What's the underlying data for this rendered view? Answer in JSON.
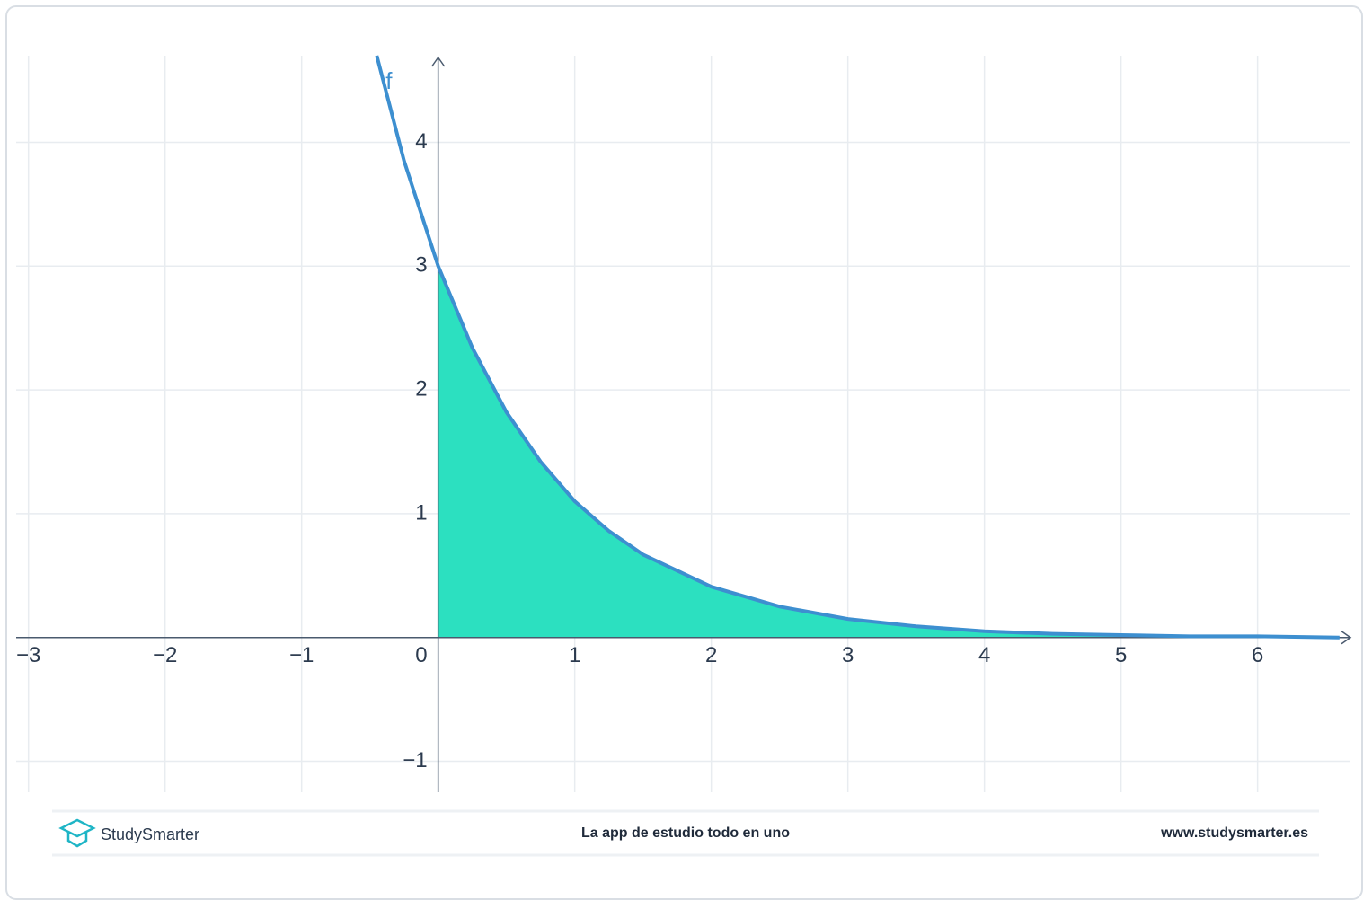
{
  "chart_data": {
    "type": "line",
    "x": [
      -0.45,
      -0.25,
      0,
      0.25,
      0.5,
      0.75,
      1,
      1.25,
      1.5,
      2,
      2.5,
      3,
      3.5,
      4,
      4.5,
      5,
      5.5,
      6,
      6.6
    ],
    "series": [
      {
        "name": "f",
        "color": "#3d8fd0",
        "values": [
          4.7,
          3.85,
          3,
          2.34,
          1.82,
          1.42,
          1.1,
          0.86,
          0.67,
          0.41,
          0.25,
          0.15,
          0.09,
          0.05,
          0.03,
          0.02,
          0.01,
          0.01,
          0
        ]
      },
      {
        "type": "area",
        "color": "#2ce0c0",
        "values": [
          null,
          null,
          3,
          2.34,
          1.82,
          1.42,
          1.1,
          0.86,
          0.67,
          0.41,
          0.25,
          0.15,
          0.09,
          0.05,
          0.03,
          0.02,
          0.01,
          0.01,
          0
        ]
      }
    ],
    "xlim": [
      -3.09,
      6.68
    ],
    "ylim": [
      -1.25,
      4.7
    ],
    "xticks": [
      {
        "value": -3,
        "label": "−3"
      },
      {
        "value": -2,
        "label": "−2"
      },
      {
        "value": -1,
        "label": "−1"
      },
      0,
      1,
      2,
      3,
      4,
      5,
      6
    ],
    "yticks": [
      {
        "value": -1,
        "label": "−1"
      },
      1,
      2,
      3,
      4
    ],
    "grid": true
  },
  "footer": {
    "brand": "StudySmarter",
    "tagline": "La app de estudio todo en uno",
    "url": "www.studysmarter.es"
  }
}
